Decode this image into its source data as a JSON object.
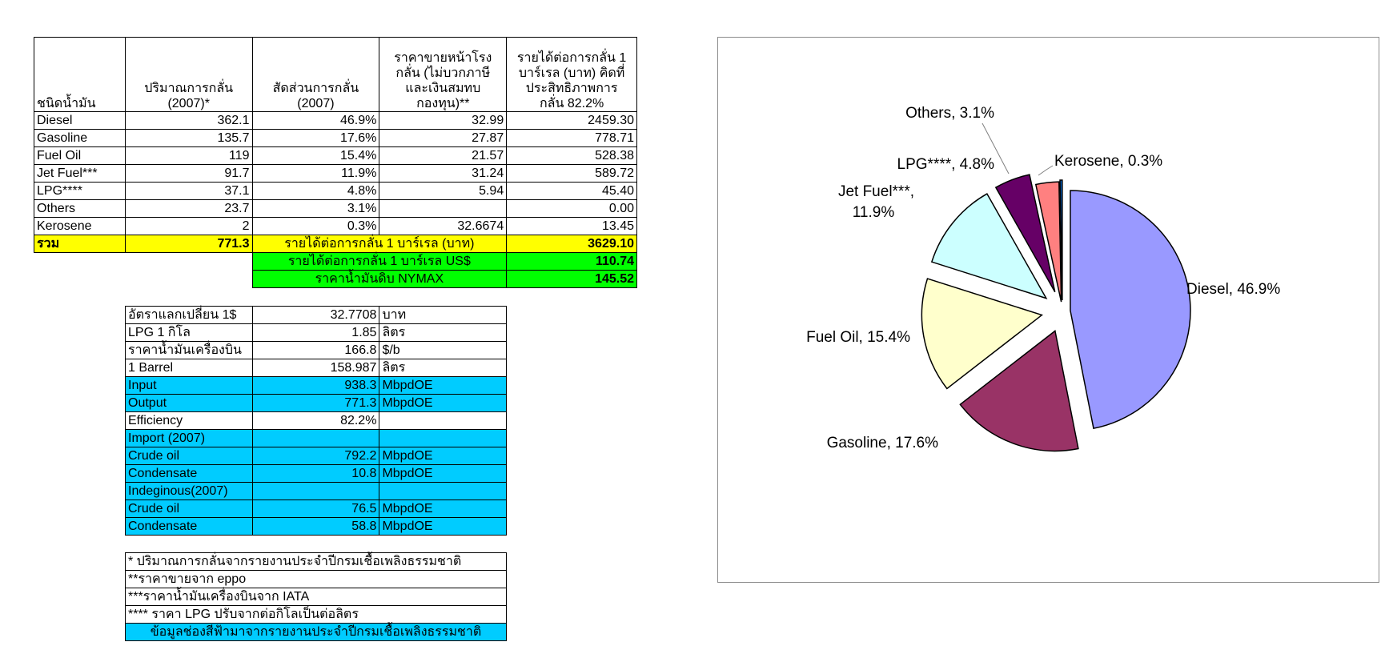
{
  "main_table": {
    "headers": {
      "type": "ชนิดน้ำมัน",
      "volume_l1": "ปริมาณการกลั่น",
      "volume_l2": "(2007)*",
      "share_l1": "สัดส่วนการกลั่น",
      "share_l2": "(2007)",
      "price_l1": "ราคาขายหน้าโรง",
      "price_l2": "กลั่น (ไม่บวกภาษี",
      "price_l3": "และเงินสมทบ",
      "price_l4": "กองทุน)**",
      "income_l1": "รายได้ต่อการกลั่น 1",
      "income_l2": "บาร์เรล (บาท) คิดที่",
      "income_l3": "ประสิทธิภาพการ",
      "income_l4": "กลั่น 82.2%"
    },
    "rows": [
      {
        "name": "Diesel",
        "volume": "362.1",
        "share": "46.9%",
        "price": "32.99",
        "income": "2459.30"
      },
      {
        "name": "Gasoline",
        "volume": "135.7",
        "share": "17.6%",
        "price": "27.87",
        "income": "778.71"
      },
      {
        "name": "Fuel Oil",
        "volume": "119",
        "share": "15.4%",
        "price": "21.57",
        "income": "528.38"
      },
      {
        "name": "Jet Fuel***",
        "volume": "91.7",
        "share": "11.9%",
        "price": "31.24",
        "income": "589.72"
      },
      {
        "name": "LPG****",
        "volume": "37.1",
        "share": "4.8%",
        "price": "5.94",
        "income": "45.40"
      },
      {
        "name": "Others",
        "volume": "23.7",
        "share": "3.1%",
        "price": "",
        "income": "0.00"
      },
      {
        "name": "Kerosene",
        "volume": "2",
        "share": "0.3%",
        "price": "32.6674",
        "income": "13.45"
      }
    ],
    "total": {
      "label": "รวม",
      "volume": "771.3",
      "income_label": "รายได้ต่อการกลั่น 1 บาร์เรล (บาท)",
      "income": "3629.10"
    },
    "usd_row": {
      "label": "รายได้ต่อการกลั่น 1 บาร์เรล US$",
      "value": "110.74"
    },
    "nymax_row": {
      "label": "ราคาน้ำมันดิบ NYMAX",
      "value": "145.52"
    }
  },
  "params_table": {
    "rows": [
      {
        "label": "อัตราแลกเปลี่ยน 1$",
        "value": "32.7708",
        "unit": "บาท",
        "highlight": false
      },
      {
        "label": "LPG 1 กิโล",
        "value": "1.85",
        "unit": "ลิตร",
        "highlight": false
      },
      {
        "label": "ราคาน้ำมันเครื่องบิน",
        "value": "166.8",
        "unit": "$/b",
        "highlight": false
      },
      {
        "label": "1 Barrel",
        "value": "158.987",
        "unit": "ลิตร",
        "highlight": false
      },
      {
        "label": "Input",
        "value": "938.3",
        "unit": "MbpdOE",
        "highlight": true
      },
      {
        "label": "Output",
        "value": "771.3",
        "unit": "MbpdOE",
        "highlight": true
      },
      {
        "label": "Efficiency",
        "value": "82.2%",
        "unit": "",
        "highlight": false
      },
      {
        "label": "Import (2007)",
        "value": "",
        "unit": "",
        "highlight": true
      },
      {
        "label": "Crude oil",
        "value": "792.2",
        "unit": "MbpdOE",
        "highlight": true
      },
      {
        "label": "Condensate",
        "value": "10.8",
        "unit": "MbpdOE",
        "highlight": true
      },
      {
        "label": "Indeginous(2007)",
        "value": "",
        "unit": "",
        "highlight": true
      },
      {
        "label": "Crude oil",
        "value": "76.5",
        "unit": "MbpdOE",
        "highlight": true
      },
      {
        "label": "Condensate",
        "value": "58.8",
        "unit": "MbpdOE",
        "highlight": true
      }
    ]
  },
  "notes": [
    {
      "text": "* ปริมาณการกลั่นจากรายงานประจำปีกรมเชื้อเพลิงธรรมชาติ",
      "highlight": false
    },
    {
      "text": "**ราคาขายจาก eppo",
      "highlight": false
    },
    {
      "text": "***ราคาน้ำมันเครื่องบินจาก IATA",
      "highlight": false
    },
    {
      "text": "**** ราคา LPG ปรับจากต่อกิโลเป็นต่อลิตร",
      "highlight": false
    },
    {
      "text": "ข้อมูลช่องสีฟ้ามาจากรายงานประจำปีกรมเชื้อเพลิงธรรมชาติ",
      "highlight": true
    }
  ],
  "colors": {
    "yellow": "#ffff00",
    "green": "#00ff00",
    "cyan": "#00ccff"
  },
  "chart_data": {
    "type": "pie",
    "exploded": true,
    "start": "12 o'clock, clockwise",
    "categories": [
      "Diesel",
      "Gasoline",
      "Fuel Oil",
      "Jet Fuel***",
      "LPG****",
      "Others",
      "Kerosene"
    ],
    "values": [
      46.9,
      17.6,
      15.4,
      11.9,
      4.8,
      3.1,
      0.3
    ],
    "labels": [
      "Diesel, 46.9%",
      "Gasoline, 17.6%",
      "Fuel Oil, 15.4%",
      "Jet Fuel***,",
      "LPG****, 4.8%",
      "Others, 3.1%",
      "Kerosene, 0.3%"
    ],
    "label_line2": {
      "Jet Fuel***": "11.9%"
    },
    "colors": [
      "#9999ff",
      "#993366",
      "#ffffcc",
      "#ccffff",
      "#660066",
      "#ff8080",
      "#0066cc"
    ],
    "legend": "none"
  }
}
